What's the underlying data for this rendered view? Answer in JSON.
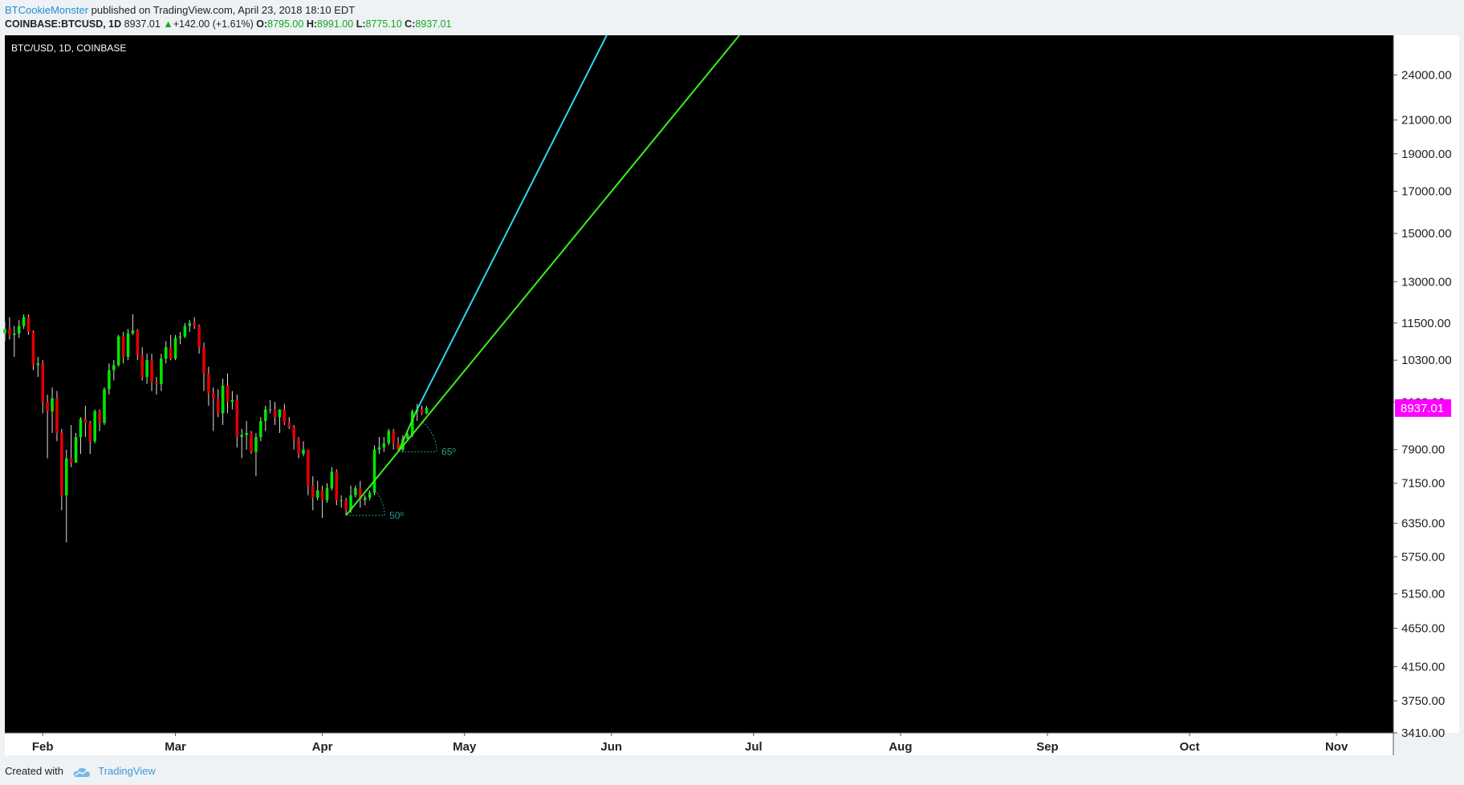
{
  "header": {
    "author": "BTCookieMonster",
    "published_text": "published on TradingView.com, April 23, 2018 18:10 EDT",
    "symbol": "COINBASE:BTCUSD, 1D",
    "last": "8937.01",
    "arrow": "▲",
    "change": "+142.00 (+1.61%)",
    "o_label": "O:",
    "o_value": "8795.00",
    "h_label": "H:",
    "h_value": "8991.00",
    "l_label": "L:",
    "l_value": "8775.10",
    "c_label": "C:",
    "c_value": "8937.01"
  },
  "footer": {
    "created_with": "Created with",
    "brand": "TradingView",
    "brand_icon": "tradingview-cloud-icon"
  },
  "colors": {
    "background": "#000000",
    "up": "#00e600",
    "down": "#e00000",
    "wick": "#dddddd",
    "price_tag": "#ff00ff",
    "cyan_line": "#2fd6ef",
    "green_line": "#3bef1e",
    "angle": "#2a9a8a"
  },
  "chart_data": {
    "type": "candlestick",
    "title": "BTC/USD, 1D, COINBASE",
    "y_scale": "log",
    "ylim": [
      3410,
      27000
    ],
    "y_ticks": [
      "24000.00",
      "21000.00",
      "19000.00",
      "17000.00",
      "15000.00",
      "13000.00",
      "11500.00",
      "10300.00",
      "9100.00",
      "7900.00",
      "7150.00",
      "6350.00",
      "5750.00",
      "5150.00",
      "4650.00",
      "4150.00",
      "3750.00",
      "3410.00"
    ],
    "x_labels": [
      "Feb",
      "Mar",
      "Apr",
      "May",
      "Jun",
      "Jul",
      "Aug",
      "Sep",
      "Oct",
      "Nov"
    ],
    "x_start": "2018-01-24",
    "x_end": "2018-11-13",
    "x_label_dates": [
      "2018-02-01",
      "2018-03-01",
      "2018-04-01",
      "2018-05-01",
      "2018-06-01",
      "2018-07-01",
      "2018-08-01",
      "2018-09-01",
      "2018-10-01",
      "2018-11-01"
    ],
    "last_price": "8937.01",
    "candles": [
      [
        "2018-01-24",
        11150,
        11550,
        10900,
        11300
      ],
      [
        "2018-01-25",
        11300,
        11700,
        10950,
        11100
      ],
      [
        "2018-01-26",
        11100,
        11400,
        10400,
        11150
      ],
      [
        "2018-01-27",
        11150,
        11600,
        11000,
        11400
      ],
      [
        "2018-01-28",
        11400,
        11800,
        11300,
        11700
      ],
      [
        "2018-01-29",
        11700,
        11800,
        11100,
        11200
      ],
      [
        "2018-01-30",
        11200,
        11250,
        10000,
        10150
      ],
      [
        "2018-01-31",
        10150,
        10400,
        9800,
        10200
      ],
      [
        "2018-02-01",
        10200,
        10300,
        8800,
        9100
      ],
      [
        "2018-02-02",
        9100,
        9300,
        7700,
        8850
      ],
      [
        "2018-02-03",
        8850,
        9500,
        8300,
        9200
      ],
      [
        "2018-02-04",
        9200,
        9400,
        8100,
        8300
      ],
      [
        "2018-02-05",
        8300,
        8400,
        6600,
        6900
      ],
      [
        "2018-02-06",
        6900,
        7900,
        6000,
        7700
      ],
      [
        "2018-02-07",
        7700,
        8500,
        7500,
        7600
      ],
      [
        "2018-02-08",
        7600,
        8300,
        7600,
        8200
      ],
      [
        "2018-02-09",
        8200,
        8700,
        7800,
        8650
      ],
      [
        "2018-02-10",
        8650,
        9000,
        8200,
        8550
      ],
      [
        "2018-02-11",
        8550,
        8600,
        7800,
        8100
      ],
      [
        "2018-02-12",
        8100,
        8900,
        8050,
        8850
      ],
      [
        "2018-02-13",
        8850,
        8900,
        8350,
        8550
      ],
      [
        "2018-02-14",
        8550,
        9500,
        8500,
        9450
      ],
      [
        "2018-02-15",
        9450,
        10200,
        9300,
        10000
      ],
      [
        "2018-02-16",
        10000,
        10300,
        9700,
        10150
      ],
      [
        "2018-02-17",
        10150,
        11100,
        10100,
        11050
      ],
      [
        "2018-02-18",
        11050,
        11200,
        10200,
        10400
      ],
      [
        "2018-02-19",
        10400,
        11300,
        10300,
        11150
      ],
      [
        "2018-02-20",
        11150,
        11800,
        11100,
        11250
      ],
      [
        "2018-02-21",
        11250,
        11300,
        10300,
        10450
      ],
      [
        "2018-02-22",
        10450,
        10700,
        9700,
        9800
      ],
      [
        "2018-02-23",
        9800,
        10500,
        9600,
        10300
      ],
      [
        "2018-02-24",
        10300,
        10500,
        9400,
        9650
      ],
      [
        "2018-02-25",
        9650,
        9800,
        9300,
        9600
      ],
      [
        "2018-02-26",
        9600,
        10500,
        9400,
        10350
      ],
      [
        "2018-02-27",
        10350,
        10900,
        10200,
        10700
      ],
      [
        "2018-02-28",
        10700,
        11100,
        10300,
        10350
      ],
      [
        "2018-03-01",
        10350,
        11100,
        10300,
        11000
      ],
      [
        "2018-03-02",
        11000,
        11200,
        10800,
        11050
      ],
      [
        "2018-03-03",
        11050,
        11500,
        11000,
        11400
      ],
      [
        "2018-03-04",
        11400,
        11600,
        11200,
        11500
      ],
      [
        "2018-03-05",
        11500,
        11700,
        11300,
        11400
      ],
      [
        "2018-03-06",
        11400,
        11450,
        10500,
        10700
      ],
      [
        "2018-03-07",
        10700,
        10850,
        9400,
        9900
      ],
      [
        "2018-03-08",
        9900,
        10100,
        9000,
        9350
      ],
      [
        "2018-03-09",
        9350,
        9500,
        8350,
        9200
      ],
      [
        "2018-03-10",
        9200,
        9450,
        8700,
        8800
      ],
      [
        "2018-03-11",
        8800,
        9750,
        8500,
        9550
      ],
      [
        "2018-03-12",
        9550,
        9900,
        8800,
        9100
      ],
      [
        "2018-03-13",
        9100,
        9400,
        8900,
        9150
      ],
      [
        "2018-03-14",
        9150,
        9300,
        7950,
        8200
      ],
      [
        "2018-03-15",
        8200,
        8400,
        7700,
        8250
      ],
      [
        "2018-03-16",
        8250,
        8600,
        7900,
        8300
      ],
      [
        "2018-03-17",
        8300,
        8350,
        7800,
        7850
      ],
      [
        "2018-03-18",
        7850,
        8300,
        7300,
        8200
      ],
      [
        "2018-03-19",
        8200,
        8700,
        8100,
        8600
      ],
      [
        "2018-03-20",
        8600,
        9000,
        8350,
        8900
      ],
      [
        "2018-03-21",
        8900,
        9150,
        8800,
        8900
      ],
      [
        "2018-03-22",
        8900,
        9100,
        8500,
        8700
      ],
      [
        "2018-03-23",
        8700,
        8900,
        8300,
        8900
      ],
      [
        "2018-03-24",
        8900,
        9050,
        8500,
        8550
      ],
      [
        "2018-03-25",
        8550,
        8700,
        8400,
        8450
      ],
      [
        "2018-03-26",
        8450,
        8500,
        7900,
        8150
      ],
      [
        "2018-03-27",
        8150,
        8200,
        7700,
        7800
      ],
      [
        "2018-03-28",
        7800,
        8100,
        7750,
        7900
      ],
      [
        "2018-03-29",
        7900,
        7900,
        6900,
        7100
      ],
      [
        "2018-03-30",
        7100,
        7300,
        6600,
        6850
      ],
      [
        "2018-03-31",
        6850,
        7200,
        6800,
        7000
      ],
      [
        "2018-04-01",
        7000,
        7100,
        6450,
        6800
      ],
      [
        "2018-04-02",
        6800,
        7150,
        6750,
        7050
      ],
      [
        "2018-04-03",
        7050,
        7500,
        7000,
        7400
      ],
      [
        "2018-04-04",
        7400,
        7450,
        6700,
        6800
      ],
      [
        "2018-04-05",
        6800,
        6900,
        6650,
        6800
      ],
      [
        "2018-04-06",
        6800,
        6850,
        6500,
        6600
      ],
      [
        "2018-04-07",
        6600,
        7100,
        6550,
        6900
      ],
      [
        "2018-04-08",
        6900,
        7100,
        6850,
        7050
      ],
      [
        "2018-04-09",
        7050,
        7200,
        6650,
        6800
      ],
      [
        "2018-04-10",
        6800,
        6900,
        6700,
        6850
      ],
      [
        "2018-04-11",
        6850,
        7000,
        6800,
        6950
      ],
      [
        "2018-04-12",
        6950,
        8000,
        6900,
        7900
      ],
      [
        "2018-04-13",
        7900,
        8200,
        7800,
        7950
      ],
      [
        "2018-04-14",
        7950,
        8200,
        7850,
        8050
      ],
      [
        "2018-04-15",
        8050,
        8400,
        8000,
        8350
      ],
      [
        "2018-04-16",
        8350,
        8400,
        7900,
        8050
      ],
      [
        "2018-04-17",
        8050,
        8200,
        7850,
        7900
      ],
      [
        "2018-04-18",
        7900,
        8250,
        7850,
        8150
      ],
      [
        "2018-04-19",
        8150,
        8300,
        8100,
        8250
      ],
      [
        "2018-04-20",
        8250,
        8900,
        8200,
        8850
      ],
      [
        "2018-04-21",
        8850,
        9050,
        8600,
        8900
      ],
      [
        "2018-04-22",
        8900,
        9000,
        8750,
        8800
      ],
      [
        "2018-04-23",
        8795,
        8991,
        8775.1,
        8937.01
      ]
    ],
    "trend_lines": [
      {
        "name": "",
        "color": "#2fd6ef",
        "from": [
          "2018-04-21",
          8900
        ],
        "to": [
          "2018-05-31",
          27000
        ]
      },
      {
        "name": "",
        "color": "#3bef1e",
        "from": [
          "2018-04-06",
          6500
        ],
        "to": [
          "2018-06-28",
          27000
        ]
      },
      {
        "name": "",
        "color": "#3bef1e",
        "from": [
          "2018-04-17",
          7850
        ],
        "to": [
          "2018-04-21",
          8900
        ]
      }
    ],
    "angle_annotations": [
      {
        "label": "50º",
        "vertex": [
          "2018-04-06",
          6500
        ]
      },
      {
        "label": "65º",
        "vertex": [
          "2018-04-17",
          7850
        ]
      }
    ]
  }
}
